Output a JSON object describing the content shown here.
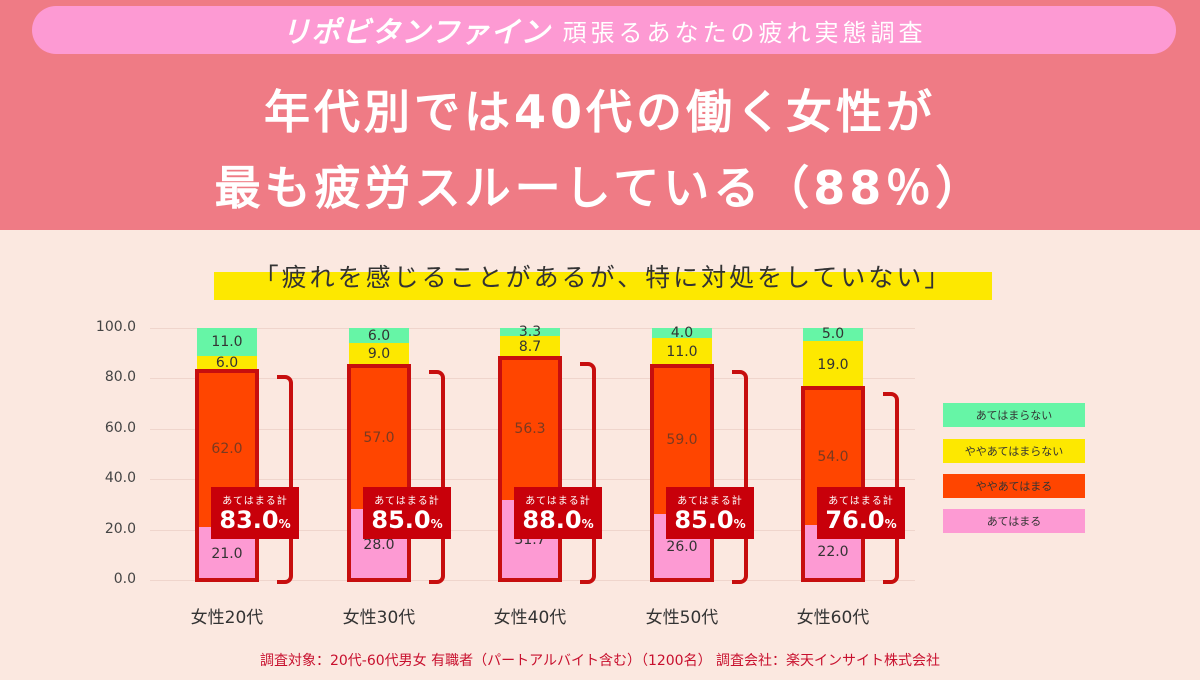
{
  "header": {
    "brand": "リポビタンファイン",
    "survey_title": "頑張るあなたの疲れ実態調査",
    "headline_line1": "年代別では40代の働く女性が",
    "headline_line2": "最も疲労スルーしている（88％）"
  },
  "question": "「疲れを感じることがあるが、特に対処をしていない」",
  "colors": {
    "header_bg": "#ef7b85",
    "pill_bg": "#fd9ad3",
    "page_bg": "#fbe8e0",
    "highlight": "#fde800",
    "atehamaranai": "#66f5a6",
    "yaya_atehamaranai": "#fde800",
    "yaya_atehamaru": "#ff4500",
    "atehamaru": "#fd9ad3",
    "accent_red": "#c70e0e"
  },
  "chart_data": {
    "type": "bar",
    "stacked": true,
    "title": "「疲れを感じることがあるが、特に対処をしていない」",
    "xlabel": "",
    "ylabel": "",
    "ylim": [
      0,
      100
    ],
    "yticks": [
      "0.0",
      "20.0",
      "40.0",
      "60.0",
      "80.0",
      "100.0"
    ],
    "grid": true,
    "legend_position": "right",
    "categories": [
      "女性20代",
      "女性30代",
      "女性40代",
      "女性50代",
      "女性60代"
    ],
    "series": [
      {
        "name": "あてはまる",
        "color": "#fd9ad3",
        "values": [
          21.0,
          28.0,
          31.7,
          26.0,
          22.0
        ]
      },
      {
        "name": "ややあてはまる",
        "color": "#ff4500",
        "values": [
          62.0,
          57.0,
          56.3,
          59.0,
          54.0
        ]
      },
      {
        "name": "ややあてはまらない",
        "color": "#fde800",
        "values": [
          6.0,
          9.0,
          8.7,
          11.0,
          19.0
        ]
      },
      {
        "name": "あてはまらない",
        "color": "#66f5a6",
        "values": [
          11.0,
          6.0,
          3.3,
          4.0,
          5.0
        ]
      }
    ],
    "annotations": {
      "label": "あてはまる計",
      "unit": "%",
      "values": [
        "83.0",
        "85.0",
        "88.0",
        "85.0",
        "76.0"
      ]
    }
  },
  "legend": [
    "あてはまらない",
    "ややあてはまらない",
    "ややあてはまる",
    "あてはまる"
  ],
  "footer": "調査対象：20代-60代男女 有職者（パートアルバイト含む）（1200名） 調査会社：楽天インサイト株式会社"
}
